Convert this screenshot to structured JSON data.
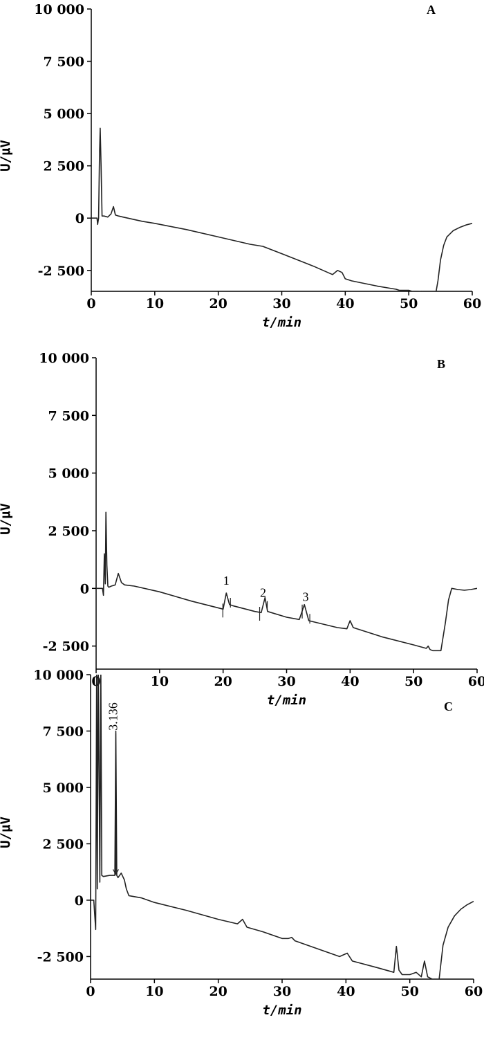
{
  "chart_data": [
    {
      "type": "line",
      "panel_label": "A",
      "xlabel": "t/min",
      "ylabel": "U/μV",
      "xlim": [
        0,
        60
      ],
      "ylim": [
        -3500,
        10000
      ],
      "x_ticks": [
        0,
        10,
        20,
        30,
        40,
        50,
        60
      ],
      "x_tick_labels": [
        "0",
        "10",
        "20",
        "30",
        "40",
        "50",
        "60"
      ],
      "y_ticks": [
        10000,
        7500,
        5000,
        2500,
        0,
        -2500
      ],
      "y_tick_labels": [
        "10 000",
        "7 500",
        "5 000",
        "2 500",
        "0",
        "-2 500"
      ],
      "series": [
        {
          "x": [
            0,
            0.9,
            1.0,
            1.15,
            1.3,
            1.4,
            1.55,
            1.7,
            2.0,
            2.6,
            3.1,
            3.5,
            3.8,
            4.3,
            5,
            8,
            10,
            15,
            20,
            25,
            27,
            30,
            35,
            38,
            38.8,
            39.5,
            40,
            41,
            45,
            47,
            48,
            48.5,
            50,
            51,
            52,
            52.5,
            53,
            53.7,
            54.2,
            54.6,
            55,
            55.5,
            56,
            57,
            58,
            59,
            60
          ],
          "y": [
            0,
            0,
            -300,
            0,
            3000,
            4300,
            2500,
            100,
            100,
            50,
            200,
            550,
            150,
            100,
            50,
            -150,
            -250,
            -550,
            -900,
            -1250,
            -1350,
            -1700,
            -2300,
            -2700,
            -2500,
            -2600,
            -2900,
            -3000,
            -3250,
            -3350,
            -3400,
            -3450,
            -3450,
            -3550,
            -3500,
            -3600,
            -3650,
            -3700,
            -3700,
            -3000,
            -2000,
            -1300,
            -900,
            -600,
            -450,
            -330,
            -250
          ]
        }
      ]
    },
    {
      "type": "line",
      "panel_label": "B",
      "xlabel": "t/min",
      "ylabel": "U/μV",
      "xlim": [
        0,
        60
      ],
      "ylim": [
        -3500,
        10000
      ],
      "x_ticks": [
        0,
        10,
        20,
        30,
        40,
        50,
        60
      ],
      "x_tick_labels": [
        "0",
        "10",
        "20",
        "30",
        "40",
        "50",
        "60"
      ],
      "y_ticks": [
        10000,
        7500,
        5000,
        2500,
        0,
        -2500
      ],
      "y_tick_labels": [
        "10 000",
        "7 500",
        "5 000",
        "2 500",
        "0",
        "-2 500"
      ],
      "series": [
        {
          "x": [
            0,
            1.0,
            1.15,
            1.3,
            1.45,
            1.55,
            1.7,
            1.85,
            2.0,
            2.4,
            3.0,
            3.5,
            4.0,
            4.5,
            6,
            10,
            15,
            20,
            20.5,
            21,
            21.5,
            25,
            26,
            26.6,
            27,
            30,
            32,
            32.8,
            33.5,
            38,
            39.5,
            40,
            40.5,
            45,
            50,
            52,
            52.3,
            52.6,
            53,
            54.3,
            55,
            55.5,
            56,
            57,
            58,
            59,
            60
          ],
          "y": [
            0,
            0,
            -300,
            1500,
            200,
            3300,
            1000,
            100,
            50,
            100,
            150,
            650,
            250,
            150,
            100,
            -150,
            -550,
            -900,
            -200,
            -700,
            -750,
            -1000,
            -1050,
            -400,
            -1000,
            -1250,
            -1350,
            -700,
            -1400,
            -1700,
            -1750,
            -1400,
            -1700,
            -2100,
            -2450,
            -2600,
            -2500,
            -2650,
            -2700,
            -2700,
            -1500,
            -500,
            0,
            -50,
            -80,
            -50,
            0
          ]
        }
      ],
      "peak_labels": [
        {
          "label": "1",
          "x": 20.5
        },
        {
          "label": "2",
          "x": 26.3
        },
        {
          "label": "3",
          "x": 33.0
        }
      ]
    },
    {
      "type": "line",
      "panel_label": "C",
      "xlabel": "t/min",
      "ylabel": "U/μV",
      "xlim": [
        0,
        60
      ],
      "ylim": [
        -3500,
        10000
      ],
      "x_ticks": [
        0,
        10,
        20,
        30,
        40,
        50,
        60
      ],
      "x_tick_labels": [
        "0",
        "10",
        "20",
        "30",
        "40",
        "50",
        "60"
      ],
      "y_ticks": [
        10000,
        7500,
        5000,
        2500,
        0,
        -2500
      ],
      "y_tick_labels": [
        "10 000",
        "7 500",
        "5 000",
        "2 500",
        "0",
        "-2 500"
      ],
      "series": [
        {
          "x": [
            0,
            0.5,
            0.8,
            0.95,
            1.05,
            1.2,
            1.45,
            1.6,
            1.75,
            2.0,
            3.0,
            3.8,
            3.95,
            4.1,
            4.3,
            4.8,
            5.3,
            5.6,
            6.0,
            8,
            10,
            15,
            20,
            23,
            23.8,
            24.5,
            27,
            30,
            31,
            31.5,
            32,
            35,
            39,
            40.2,
            41,
            45,
            47.5,
            47.9,
            48.3,
            48.8,
            50,
            51,
            51.8,
            52.3,
            52.8,
            53.5,
            54.1,
            54.6,
            55.2,
            56,
            57,
            58,
            59,
            60
          ],
          "y": [
            0,
            0,
            -1300,
            10500,
            500,
            10500,
            800,
            10500,
            1100,
            1050,
            1100,
            1100,
            7500,
            1100,
            1000,
            1200,
            900,
            500,
            200,
            100,
            -100,
            -450,
            -850,
            -1050,
            -850,
            -1200,
            -1400,
            -1700,
            -1700,
            -1650,
            -1800,
            -2100,
            -2500,
            -2350,
            -2700,
            -3000,
            -3200,
            -2050,
            -3100,
            -3300,
            -3300,
            -3200,
            -3400,
            -2700,
            -3400,
            -3500,
            -3550,
            -3500,
            -2000,
            -1200,
            -700,
            -400,
            -200,
            -50
          ]
        }
      ],
      "peak_labels": [
        {
          "label": "3.136",
          "x": 3.95
        }
      ]
    }
  ]
}
